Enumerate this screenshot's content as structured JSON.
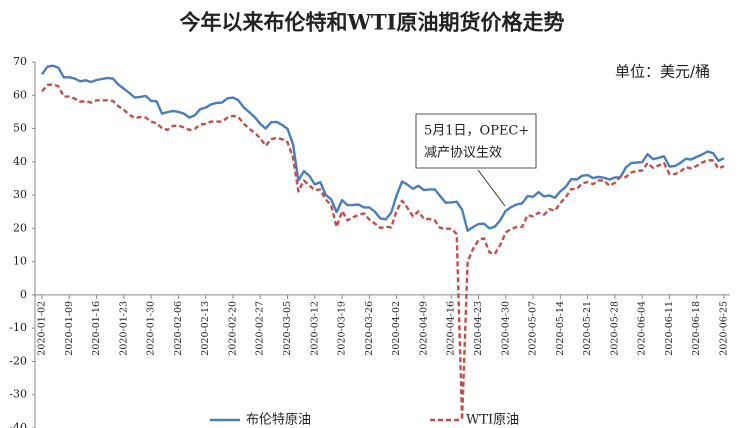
{
  "chart_data": {
    "type": "line",
    "title": "今年以来布伦特和WTI原油期货价格走势",
    "unit_label": "单位：美元/桶",
    "annotation": [
      "5月1日，OPEC+",
      "减产协议生效"
    ],
    "categories": [
      "2020-01-02",
      null,
      null,
      null,
      null,
      "2020-01-09",
      null,
      null,
      null,
      null,
      "2020-01-16",
      null,
      null,
      null,
      null,
      "2020-01-23",
      null,
      null,
      null,
      null,
      "2020-01-30",
      null,
      null,
      null,
      null,
      "2020-02-06",
      null,
      null,
      null,
      null,
      "2020-02-13",
      null,
      null,
      null,
      null,
      "2020-02-20",
      null,
      null,
      null,
      null,
      "2020-02-27",
      null,
      null,
      null,
      null,
      "2020-03-05",
      null,
      null,
      null,
      null,
      "2020-03-12",
      null,
      null,
      null,
      null,
      "2020-03-19",
      null,
      null,
      null,
      null,
      "2020-03-26",
      null,
      null,
      null,
      null,
      "2020-04-02",
      null,
      null,
      null,
      null,
      "2020-04-09",
      null,
      null,
      null,
      null,
      "2020-04-16",
      null,
      null,
      null,
      null,
      "2020-04-23",
      null,
      null,
      null,
      null,
      "2020-04-30",
      null,
      null,
      null,
      null,
      "2020-05-07",
      null,
      null,
      null,
      null,
      "2020-05-14",
      null,
      null,
      null,
      null,
      "2020-05-21",
      null,
      null,
      null,
      null,
      "2020-05-28",
      null,
      null,
      null,
      null,
      "2020-06-04",
      null,
      null,
      null,
      null,
      "2020-06-11",
      null,
      null,
      null,
      null,
      "2020-06-18",
      null,
      null,
      null,
      null,
      "2020-06-25"
    ],
    "series": [
      {
        "name": "布伦特原油",
        "color": "#4a7ebb",
        "dashed": false,
        "values": [
          66.3,
          68.6,
          68.9,
          68.3,
          65.4,
          65.4,
          65.0,
          64.2,
          64.5,
          64.0,
          64.6,
          64.9,
          65.2,
          65.0,
          63.2,
          62.0,
          60.7,
          59.3,
          59.5,
          59.8,
          58.3,
          58.2,
          54.5,
          54.9,
          55.3,
          55.0,
          54.5,
          53.3,
          54.0,
          55.8,
          56.3,
          57.3,
          57.7,
          57.8,
          59.1,
          59.3,
          58.5,
          56.3,
          54.9,
          53.4,
          51.4,
          50.0,
          51.9,
          52.0,
          51.1,
          49.9,
          45.3,
          34.4,
          37.2,
          35.8,
          33.2,
          33.9,
          30.1,
          28.7,
          24.9,
          28.5,
          27.0,
          27.0,
          27.2,
          26.3,
          26.3,
          25.0,
          23.0,
          22.7,
          24.7,
          29.9,
          34.1,
          33.1,
          31.9,
          32.8,
          31.5,
          31.7,
          31.7,
          29.6,
          27.7,
          27.8,
          28.0,
          25.6,
          19.3,
          20.4,
          21.3,
          21.4,
          20.0,
          20.5,
          22.5,
          25.3,
          26.4,
          27.2,
          27.5,
          29.7,
          29.5,
          30.9,
          29.6,
          29.9,
          29.2,
          31.1,
          32.5,
          34.8,
          34.7,
          35.8,
          36.0,
          35.1,
          35.5,
          35.2,
          34.7,
          35.3,
          35.3,
          38.3,
          39.6,
          39.8,
          39.9,
          42.3,
          40.8,
          41.2,
          41.7,
          38.6,
          38.7,
          39.7,
          40.9,
          40.7,
          41.5,
          42.2,
          43.1,
          42.6,
          40.3,
          41.1
        ]
      },
      {
        "name": "WTI原油",
        "color": "#c0504d",
        "dashed": true,
        "values": [
          61.2,
          63.1,
          63.3,
          62.7,
          59.6,
          59.6,
          59.0,
          58.1,
          58.2,
          57.8,
          58.5,
          58.5,
          58.5,
          58.3,
          56.7,
          55.6,
          54.2,
          53.1,
          53.5,
          53.3,
          52.1,
          51.6,
          50.1,
          49.6,
          50.8,
          50.9,
          50.3,
          49.6,
          49.9,
          51.2,
          51.4,
          52.1,
          52.1,
          52.1,
          53.3,
          53.8,
          53.4,
          51.4,
          49.9,
          48.7,
          47.1,
          44.8,
          46.8,
          47.2,
          46.8,
          45.9,
          41.3,
          31.1,
          34.4,
          32.9,
          31.5,
          31.7,
          28.7,
          26.9,
          20.4,
          25.2,
          22.4,
          23.4,
          24.0,
          24.5,
          22.6,
          21.5,
          20.1,
          20.5,
          20.3,
          25.3,
          28.3,
          26.1,
          23.6,
          25.1,
          22.8,
          22.8,
          22.4,
          20.1,
          19.9,
          19.9,
          18.3,
          -37.6,
          10.0,
          13.8,
          16.5,
          17.0,
          12.8,
          12.3,
          15.1,
          18.8,
          19.8,
          20.4,
          20.4,
          24.0,
          23.6,
          24.7,
          24.1,
          25.8,
          25.3,
          27.6,
          29.4,
          31.8,
          31.9,
          33.5,
          33.9,
          33.3,
          34.4,
          34.4,
          32.8,
          33.7,
          35.5,
          35.4,
          36.8,
          37.3,
          37.4,
          39.6,
          38.2,
          38.9,
          39.6,
          36.3,
          36.3,
          37.1,
          38.4,
          38.0,
          38.8,
          39.8,
          40.5,
          40.4,
          38.0,
          38.7
        ]
      }
    ],
    "ylim": [
      -40,
      70
    ],
    "yticks": [
      -40,
      -30,
      -20,
      -10,
      0,
      10,
      20,
      30,
      40,
      50,
      60,
      70
    ]
  }
}
